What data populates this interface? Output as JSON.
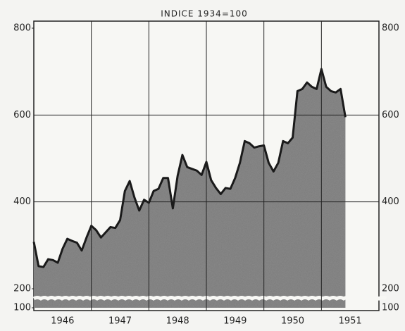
{
  "chart_data": {
    "type": "area",
    "title": "INDICE 1934=100",
    "x": [
      1946.0,
      1946.083,
      1946.167,
      1946.25,
      1946.333,
      1946.417,
      1946.5,
      1946.583,
      1946.667,
      1946.75,
      1946.833,
      1946.917,
      1947.0,
      1947.083,
      1947.167,
      1947.25,
      1947.333,
      1947.417,
      1947.5,
      1947.583,
      1947.667,
      1947.75,
      1947.833,
      1947.917,
      1948.0,
      1948.083,
      1948.167,
      1948.25,
      1948.333,
      1948.417,
      1948.5,
      1948.583,
      1948.667,
      1948.75,
      1948.833,
      1948.917,
      1949.0,
      1949.083,
      1949.167,
      1949.25,
      1949.333,
      1949.417,
      1949.5,
      1949.583,
      1949.667,
      1949.75,
      1949.833,
      1949.917,
      1950.0,
      1950.083,
      1950.167,
      1950.25,
      1950.333,
      1950.417,
      1950.5,
      1950.583,
      1950.667,
      1950.75,
      1950.833,
      1950.917,
      1951.0,
      1951.083,
      1951.167,
      1951.25,
      1951.333,
      1951.417
    ],
    "series": [
      {
        "color": "#7a7a7a",
        "values": [
          308,
          252,
          250,
          268,
          266,
          260,
          292,
          315,
          310,
          306,
          288,
          318,
          345,
          335,
          318,
          330,
          342,
          340,
          358,
          425,
          448,
          410,
          380,
          405,
          398,
          425,
          430,
          455,
          455,
          385,
          460,
          508,
          480,
          476,
          472,
          462,
          492,
          450,
          432,
          418,
          432,
          430,
          455,
          490,
          540,
          535,
          525,
          528,
          530,
          490,
          470,
          490,
          540,
          535,
          548,
          655,
          660,
          675,
          665,
          660,
          706,
          665,
          655,
          652,
          660,
          595
        ]
      }
    ],
    "xlim": [
      1946,
      1952
    ],
    "xticks": [
      {
        "value": 1946,
        "label": "1946"
      },
      {
        "value": 1947,
        "label": "1947"
      },
      {
        "value": 1948,
        "label": "1948"
      },
      {
        "value": 1949,
        "label": "1949"
      },
      {
        "value": 1950,
        "label": "1950"
      },
      {
        "value": 1951,
        "label": "1951"
      }
    ],
    "ylim": [
      100,
      800
    ],
    "yticks": [
      100,
      200,
      400,
      600,
      800
    ],
    "axis_break": [
      100,
      200
    ],
    "grid": true
  }
}
